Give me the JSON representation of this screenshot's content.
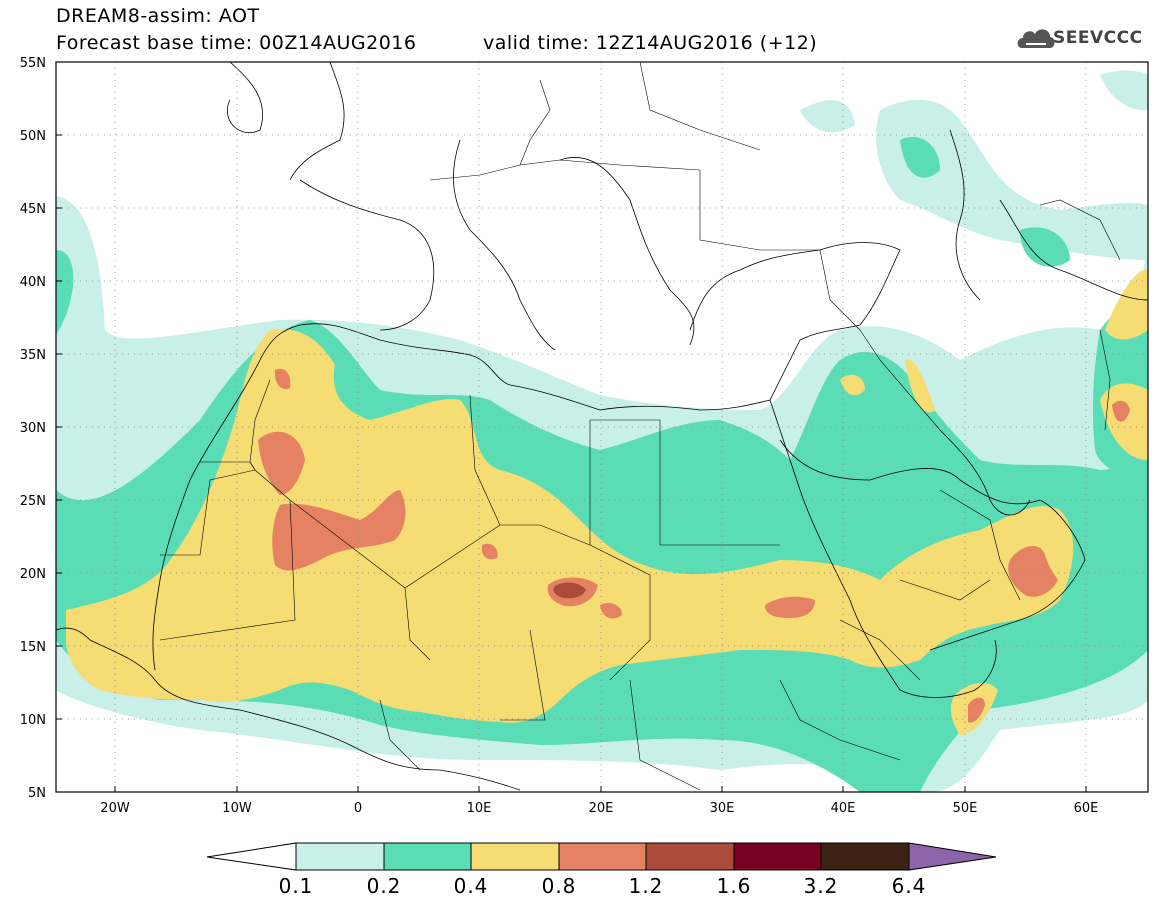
{
  "header": {
    "line1": "DREAM8-assim: AOT",
    "line2": "Forecast base time: 00Z14AUG2016",
    "line3": "valid time: 12Z14AUG2016 (+12)",
    "logo_text": "SEEVCCC"
  },
  "axes": {
    "lat_labels": [
      "55N",
      "50N",
      "45N",
      "40N",
      "35N",
      "30N",
      "25N",
      "20N",
      "15N",
      "10N",
      "5N"
    ],
    "lat_values": [
      55,
      50,
      45,
      40,
      35,
      30,
      25,
      20,
      15,
      10,
      5
    ],
    "lon_labels": [
      "20W",
      "10W",
      "0",
      "10E",
      "20E",
      "30E",
      "40E",
      "50E",
      "60E"
    ],
    "lon_values": [
      -20,
      -10,
      0,
      10,
      20,
      30,
      40,
      50,
      60
    ],
    "lon_range": [
      -25,
      65
    ],
    "lat_range": [
      5,
      55
    ],
    "grid": "dotted"
  },
  "colorbar": {
    "labels": [
      "0.1",
      "0.2",
      "0.4",
      "0.8",
      "1.2",
      "1.6",
      "3.2",
      "6.4"
    ],
    "colors": [
      "#c8f0e8",
      "#5adcb4",
      "#f5dc73",
      "#e68264",
      "#aa4b3c",
      "#780023",
      "#3c2314"
    ],
    "under_color": "#ffffff",
    "over_color": "#8c64aa"
  },
  "map_colors": {
    "level1": "#c8f0e8",
    "level2": "#5adcb4",
    "level3": "#f5dc73",
    "level4": "#e68264",
    "level5": "#aa4b3c"
  }
}
